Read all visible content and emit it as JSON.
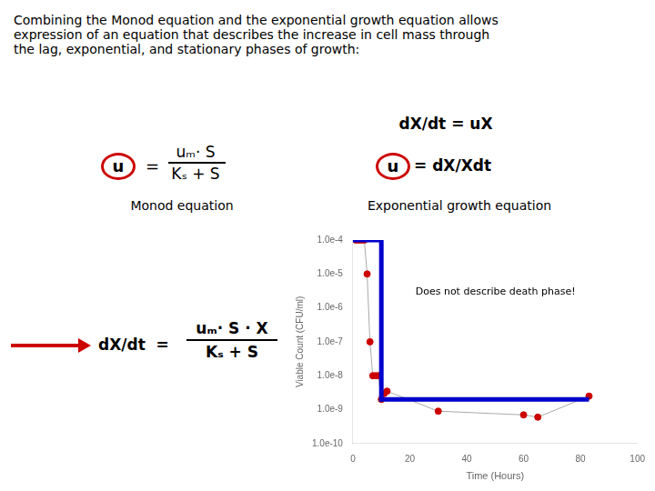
{
  "chart_data": {
    "type": "line",
    "subtitle": "Combining the Monod equation and the exponential growth equation allows\nexpression of an equation that describes the increase in cell mass through\nthe lag, exponential, and stationary phases of growth:",
    "x_label": "Time (Hours)",
    "y_label": "Viable Count (CFU/ml)",
    "log": "y",
    "grid": false,
    "xlim": [
      0,
      100
    ],
    "xticks": [
      0,
      20,
      40,
      60,
      80,
      100
    ],
    "ylim": [
      1e-10,
      0.0001
    ],
    "yticks": [
      {
        "value": 1e-10,
        "label": "1.0e-10"
      },
      {
        "value": 1e-09,
        "label": "1.0e-9"
      },
      {
        "value": 1e-08,
        "label": "1.0e-8"
      },
      {
        "value": 1e-07,
        "label": "1.0e-7"
      },
      {
        "value": 1e-06,
        "label": "1.0e-6"
      },
      {
        "value": 1e-05,
        "label": "1.0e-5"
      },
      {
        "value": 0.0001,
        "label": "1.0e-4"
      }
    ],
    "series": [
      {
        "type": "line",
        "color": "#aaaaaa",
        "marker": "none",
        "x": [
          1,
          2,
          3,
          4,
          5,
          6,
          7,
          8,
          9,
          10,
          11,
          12,
          30,
          60,
          65,
          83
        ],
        "values": [
          0.0001,
          0.0001,
          0.0001,
          0.0001,
          1e-05,
          1e-07,
          1e-08,
          1e-08,
          1e-08,
          2e-09,
          3e-09,
          3.5e-09,
          9e-10,
          7e-10,
          6e-10,
          2.5e-09
        ]
      },
      {
        "type": "scatter",
        "color": "#cc0000",
        "marker": "circle",
        "x": [
          1,
          2,
          3,
          4,
          5,
          6,
          7,
          8,
          9,
          10,
          11,
          12,
          30,
          60,
          65,
          83
        ],
        "values": [
          0.0001,
          0.0001,
          0.0001,
          0.0001,
          1e-05,
          1e-07,
          1e-08,
          1e-08,
          1e-08,
          2e-09,
          3e-09,
          3.5e-09,
          9e-10,
          7e-10,
          6e-10,
          2.5e-09
        ]
      },
      {
        "type": "line",
        "color": "#0000cc",
        "marker": "none",
        "x": [
          0,
          10,
          10,
          83
        ],
        "values": [
          0.0001,
          0.0001,
          2e-09,
          2e-09
        ]
      }
    ],
    "annotations": [
      {
        "text": "dX/dt = uX"
      },
      {
        "text": "u",
        "marker": "circle",
        "color": "#cc0000"
      },
      {
        "text": "="
      },
      {
        "text": "uₘ· S"
      },
      {
        "text": "Kₛ + S"
      },
      {
        "text": "Monod equation"
      },
      {
        "text": "u",
        "marker": "circle",
        "color": "#cc0000"
      },
      {
        "text": "= dX/Xdt"
      },
      {
        "text": "Exponential growth equation"
      },
      {
        "text": "dX/dt  =",
        "marker": "arrow",
        "color": "#cc0000"
      },
      {
        "text": "uₘ· S · X"
      },
      {
        "text": "Kₛ + S"
      },
      {
        "text": "Does not describe death phase!",
        "x": 22,
        "y": 3e-06
      }
    ]
  }
}
